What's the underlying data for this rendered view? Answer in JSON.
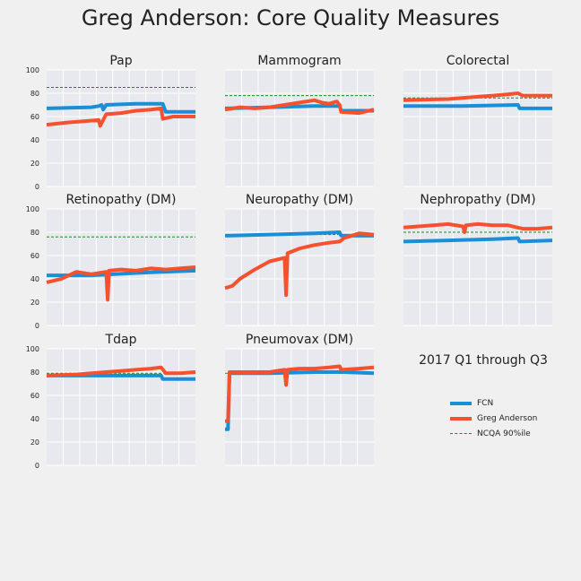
{
  "title": "Greg Anderson: Core Quality Measures",
  "period_label": "2017 Q1 through Q3",
  "colors": {
    "fcn": "#1a8fd6",
    "greg": "#f5512f",
    "ncqa": "#1a8a1a",
    "panel_bg": "#e8e8ef",
    "grid": "#ffffff",
    "figure_bg": "#f0f0f0"
  },
  "legend": [
    {
      "label": "FCN",
      "color": "#1a8fd6",
      "style": "solid"
    },
    {
      "label": "Greg Anderson",
      "color": "#f5512f",
      "style": "solid"
    },
    {
      "label": "NCQA 90%ile",
      "color": "#1a8a1a",
      "style": "dashed"
    }
  ],
  "chart_data": [
    {
      "type": "line",
      "title": "Pap",
      "ylim": [
        0,
        100
      ],
      "yticks": [
        "0",
        "20",
        "40",
        "60",
        "80",
        "100"
      ],
      "ncqa": 85,
      "series": [
        {
          "name": "FCN",
          "x": [
            0,
            0.3,
            0.35,
            0.37,
            0.38,
            0.4,
            0.6,
            0.78,
            0.8,
            1
          ],
          "y": [
            67,
            68,
            69,
            70,
            66,
            70,
            71,
            71,
            64,
            64
          ]
        },
        {
          "name": "Greg Anderson",
          "x": [
            0,
            0.15,
            0.25,
            0.35,
            0.36,
            0.4,
            0.5,
            0.6,
            0.7,
            0.77,
            0.78,
            0.85,
            1
          ],
          "y": [
            53,
            55,
            56,
            57,
            52,
            62,
            63,
            65,
            66,
            67,
            58,
            60,
            60
          ]
        }
      ]
    },
    {
      "type": "line",
      "title": "Mammogram",
      "ylim": [
        0,
        100
      ],
      "yticks": [],
      "ncqa": 78,
      "series": [
        {
          "name": "FCN",
          "x": [
            0,
            0.3,
            0.6,
            0.77,
            0.78,
            1
          ],
          "y": [
            67,
            68,
            69,
            69,
            65,
            65
          ]
        },
        {
          "name": "Greg Anderson",
          "x": [
            0,
            0.1,
            0.2,
            0.3,
            0.4,
            0.5,
            0.55,
            0.6,
            0.65,
            0.7,
            0.75,
            0.77,
            0.78,
            0.9,
            1
          ],
          "y": [
            66,
            68,
            67,
            68,
            70,
            72,
            73,
            74,
            72,
            71,
            73,
            70,
            64,
            63,
            66
          ]
        }
      ]
    },
    {
      "type": "line",
      "title": "Colorectal",
      "ylim": [
        0,
        100
      ],
      "yticks": [],
      "ncqa": 76,
      "series": [
        {
          "name": "FCN",
          "x": [
            0,
            0.4,
            0.77,
            0.78,
            1
          ],
          "y": [
            69,
            69,
            70,
            67,
            67
          ]
        },
        {
          "name": "Greg Anderson",
          "x": [
            0,
            0.3,
            0.5,
            0.6,
            0.7,
            0.77,
            0.8,
            0.9,
            1
          ],
          "y": [
            74,
            75,
            77,
            78,
            79,
            80,
            78,
            78,
            78
          ]
        }
      ]
    },
    {
      "type": "line",
      "title": "Retinopathy (DM)",
      "ylim": [
        0,
        100
      ],
      "yticks": [
        "0",
        "20",
        "40",
        "60",
        "80",
        "100"
      ],
      "ncqa": 76,
      "series": [
        {
          "name": "FCN",
          "x": [
            0,
            0.3,
            0.6,
            0.77,
            0.78,
            1
          ],
          "y": [
            43,
            43,
            45,
            46,
            46,
            47
          ]
        },
        {
          "name": "Greg Anderson",
          "x": [
            0,
            0.1,
            0.2,
            0.3,
            0.35,
            0.4,
            0.41,
            0.42,
            0.5,
            0.6,
            0.7,
            0.8,
            0.9,
            1
          ],
          "y": [
            37,
            40,
            46,
            44,
            45,
            46,
            22,
            47,
            48,
            47,
            49,
            48,
            49,
            50
          ]
        }
      ]
    },
    {
      "type": "line",
      "title": "Neuropathy (DM)",
      "ylim": [
        0,
        100
      ],
      "yticks": [],
      "ncqa": 78,
      "series": [
        {
          "name": "FCN",
          "x": [
            0,
            0.3,
            0.6,
            0.77,
            0.78,
            1
          ],
          "y": [
            77,
            78,
            79,
            80,
            77,
            77
          ]
        },
        {
          "name": "Greg Anderson",
          "x": [
            0,
            0.05,
            0.1,
            0.2,
            0.3,
            0.4,
            0.41,
            0.42,
            0.5,
            0.6,
            0.7,
            0.77,
            0.8,
            0.9,
            1
          ],
          "y": [
            32,
            34,
            40,
            48,
            55,
            58,
            26,
            62,
            66,
            69,
            71,
            72,
            75,
            79,
            78
          ]
        }
      ]
    },
    {
      "type": "line",
      "title": "Nephropathy (DM)",
      "ylim": [
        0,
        100
      ],
      "yticks": [],
      "ncqa": 80,
      "series": [
        {
          "name": "FCN",
          "x": [
            0,
            0.3,
            0.6,
            0.77,
            0.78,
            1
          ],
          "y": [
            72,
            73,
            74,
            75,
            72,
            73
          ]
        },
        {
          "name": "Greg Anderson",
          "x": [
            0,
            0.1,
            0.2,
            0.3,
            0.4,
            0.41,
            0.42,
            0.5,
            0.6,
            0.7,
            0.8,
            0.9,
            1
          ],
          "y": [
            84,
            85,
            86,
            87,
            85,
            80,
            86,
            87,
            86,
            86,
            83,
            83,
            84
          ]
        }
      ]
    },
    {
      "type": "line",
      "title": "Tdap",
      "ylim": [
        0,
        100
      ],
      "yticks": [
        "0",
        "20",
        "40",
        "60",
        "80",
        "100"
      ],
      "ncqa": 79,
      "series": [
        {
          "name": "FCN",
          "x": [
            0,
            0.3,
            0.6,
            0.77,
            0.78,
            1
          ],
          "y": [
            77,
            77,
            77,
            77,
            74,
            74
          ]
        },
        {
          "name": "Greg Anderson",
          "x": [
            0,
            0.2,
            0.4,
            0.6,
            0.7,
            0.77,
            0.8,
            0.9,
            1
          ],
          "y": [
            77,
            78,
            80,
            82,
            83,
            84,
            79,
            79,
            80
          ]
        }
      ]
    },
    {
      "type": "line",
      "title": "Pneumovax (DM)",
      "ylim": [
        0,
        100
      ],
      "yticks": [],
      "ncqa": 79,
      "series": [
        {
          "name": "FCN",
          "x": [
            0,
            0.02,
            0.03,
            0.3,
            0.6,
            0.8,
            1
          ],
          "y": [
            31,
            31,
            79,
            79,
            80,
            80,
            79
          ]
        },
        {
          "name": "Greg Anderson",
          "x": [
            0,
            0.02,
            0.03,
            0.3,
            0.4,
            0.41,
            0.42,
            0.5,
            0.6,
            0.7,
            0.77,
            0.78,
            0.9,
            1
          ],
          "y": [
            38,
            38,
            80,
            80,
            82,
            69,
            82,
            83,
            83,
            84,
            85,
            82,
            83,
            84
          ]
        }
      ]
    }
  ]
}
